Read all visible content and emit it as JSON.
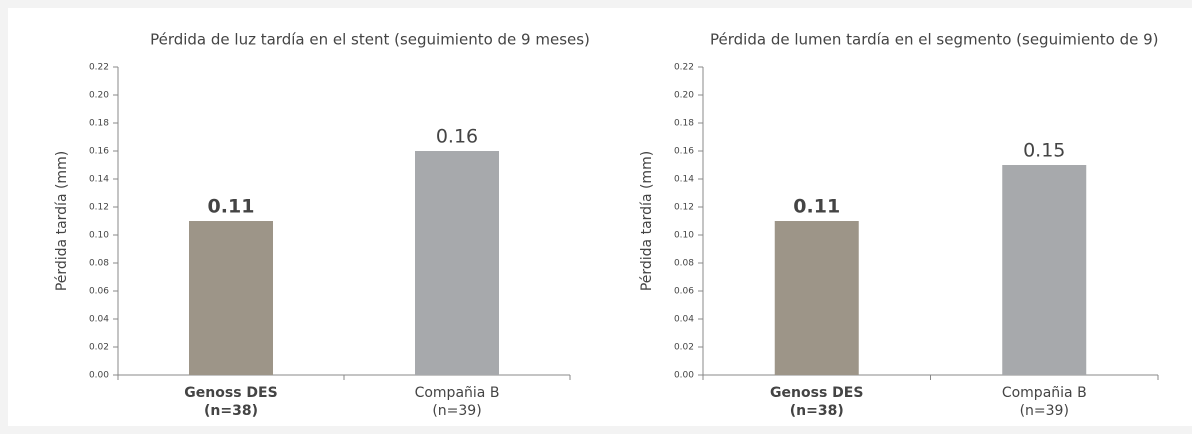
{
  "chart_data": [
    {
      "type": "bar",
      "title": "Pérdida de luz tardía en el stent (seguimiento de 9 meses)",
      "y_label": "Pérdida tardía (mm)",
      "categories": [
        "Genoss DES",
        "Compañia B"
      ],
      "category_notes": [
        "(n=38)",
        "(n=39)"
      ],
      "values": [
        0.11,
        0.16
      ],
      "colors": [
        "#9d9588",
        "#a7a9ac"
      ],
      "ylim": [
        0,
        0.22
      ],
      "yticks": [
        {
          "value": 0,
          "label": "0.00"
        },
        0.02,
        0.04,
        0.06,
        0.08,
        {
          "value": 0.1,
          "label": "0.10"
        },
        0.12,
        0.14,
        0.16,
        0.18,
        {
          "value": 0.2,
          "label": "0.20"
        },
        0.22
      ]
    },
    {
      "type": "bar",
      "title": "Pérdida de lumen tardía en el segmento (seguimiento de 9)",
      "y_label": "Pérdida tardía (mm)",
      "categories": [
        "Genoss DES",
        "Compañia B"
      ],
      "category_notes": [
        "(n=38)",
        "(n=39)"
      ],
      "values": [
        0.11,
        0.15
      ],
      "colors": [
        "#9d9588",
        "#a7a9ac"
      ],
      "ylim": [
        0,
        0.22
      ],
      "yticks": [
        {
          "value": 0,
          "label": "0.00"
        },
        0.02,
        0.04,
        0.06,
        0.08,
        {
          "value": 0.1,
          "label": "0.10"
        },
        0.12,
        0.14,
        0.16,
        0.18,
        {
          "value": 0.2,
          "label": "0.20"
        },
        0.22
      ]
    }
  ]
}
